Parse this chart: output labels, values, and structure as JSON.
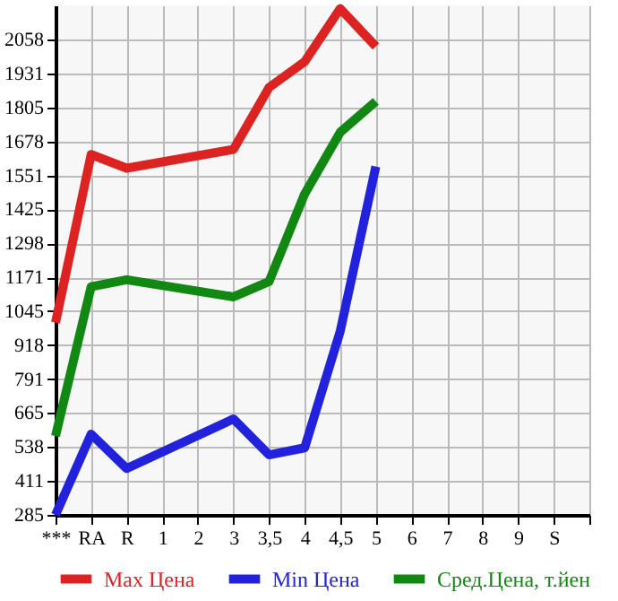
{
  "chart_data": {
    "type": "line",
    "categories": [
      "***",
      "RA",
      "R",
      "1",
      "2",
      "3",
      "3,5",
      "4",
      "4,5",
      "5",
      "6",
      "7",
      "8",
      "9",
      "S",
      null
    ],
    "series": [
      {
        "name": "Max Цена",
        "color": "#dd2222",
        "values": [
          1002,
          1629,
          1578,
          null,
          null,
          1648,
          1879,
          1975,
          2173,
          2032,
          null,
          null,
          null,
          null,
          null,
          null
        ]
      },
      {
        "name": "Min Цена",
        "color": "#2222dd",
        "values": [
          285,
          586,
          458,
          null,
          null,
          643,
          509,
          535,
          970,
          1584,
          null,
          null,
          null,
          null,
          null,
          null
        ]
      },
      {
        "name": "Сред.Цена, т.йен",
        "color": "#118811",
        "values": [
          579,
          1136,
          1162,
          null,
          null,
          1098,
          1155,
          1482,
          1712,
          1827,
          null,
          null,
          null,
          null,
          null,
          null
        ]
      }
    ],
    "ylim": [
      285,
      2185
    ],
    "yticks": [
      285,
      411,
      538,
      665,
      791,
      918,
      1045,
      1171,
      1298,
      1425,
      1551,
      1678,
      1805,
      1931,
      2058
    ],
    "grid": true,
    "legend": "bottom",
    "marker": "none",
    "line_style": "solid"
  }
}
